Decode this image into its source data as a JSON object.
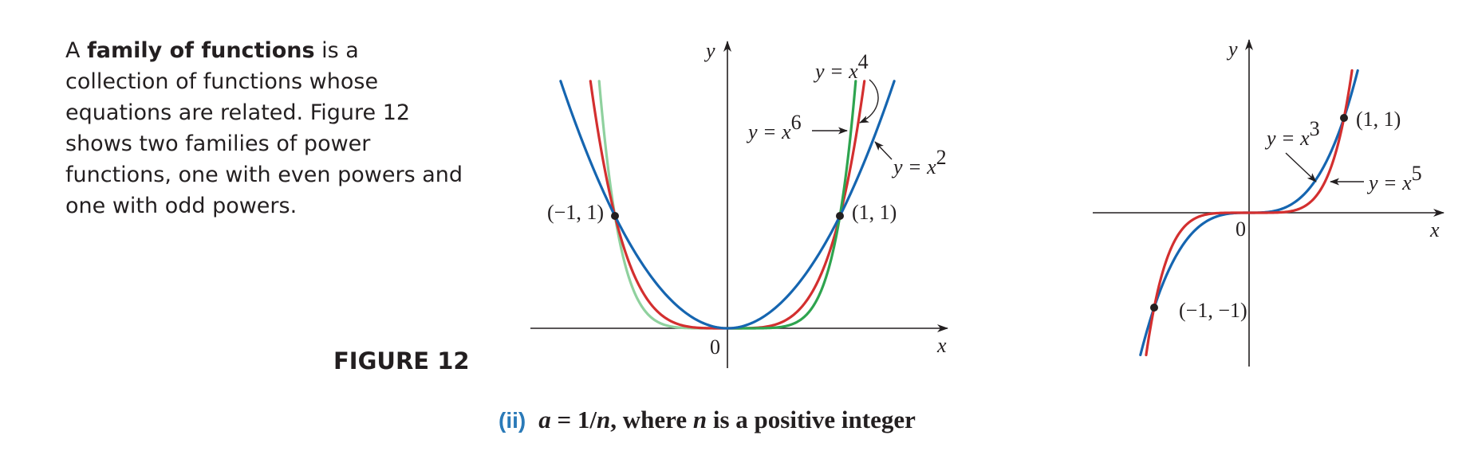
{
  "paragraph": {
    "lead": "A ",
    "term": "family of functions",
    "rest": " is a collection of functions whose equations are related. Figure 12 shows two families of power functions, one with even powers and one with odd powers."
  },
  "figure_label": "FIGURE 12",
  "caption": {
    "tag": "(ii)",
    "a": "a",
    "eq": " = 1/",
    "n": "n",
    "rest": ", where ",
    "n2": "n",
    "end": " is a positive integer"
  },
  "colors": {
    "blue": "#1565b0",
    "red": "#d32f2f",
    "green": "#2ea44f",
    "light_green": "#8fd19e",
    "caption_blue": "#2a7ab8"
  },
  "chart_data": [
    {
      "type": "line",
      "xlabel": "x",
      "ylabel": "y",
      "origin_label": "0",
      "xlim": [
        -1.5,
        1.95
      ],
      "ylim": [
        0,
        2.55
      ],
      "series": [
        {
          "name": "y = x^2",
          "exponent": 2,
          "color": "blue"
        },
        {
          "name": "y = x^4",
          "exponent": 4,
          "color": "red"
        },
        {
          "name": "y = x^6",
          "exponent": 6,
          "color": "green"
        }
      ],
      "points": [
        {
          "x": -1,
          "y": 1,
          "label": "(−1, 1)"
        },
        {
          "x": 1,
          "y": 1,
          "label": "(1, 1)"
        }
      ],
      "labels": {
        "x2": "y = x",
        "x2_sup": "2",
        "x4": "y = x",
        "x4_sup": "4",
        "x6": "y = x",
        "x6_sup": "6"
      }
    },
    {
      "type": "line",
      "xlabel": "x",
      "ylabel": "y",
      "origin_label": "0",
      "xlim": [
        -1.7,
        1.9
      ],
      "ylim": [
        -1.6,
        1.75
      ],
      "series": [
        {
          "name": "y = x^3",
          "exponent": 3,
          "color": "blue"
        },
        {
          "name": "y = x^5",
          "exponent": 5,
          "color": "red"
        }
      ],
      "points": [
        {
          "x": -1,
          "y": -1,
          "label": "(−1, −1)"
        },
        {
          "x": 1,
          "y": 1,
          "label": "(1, 1)"
        }
      ],
      "labels": {
        "x3": "y = x",
        "x3_sup": "3",
        "x5": "y = x",
        "x5_sup": "5"
      }
    }
  ]
}
